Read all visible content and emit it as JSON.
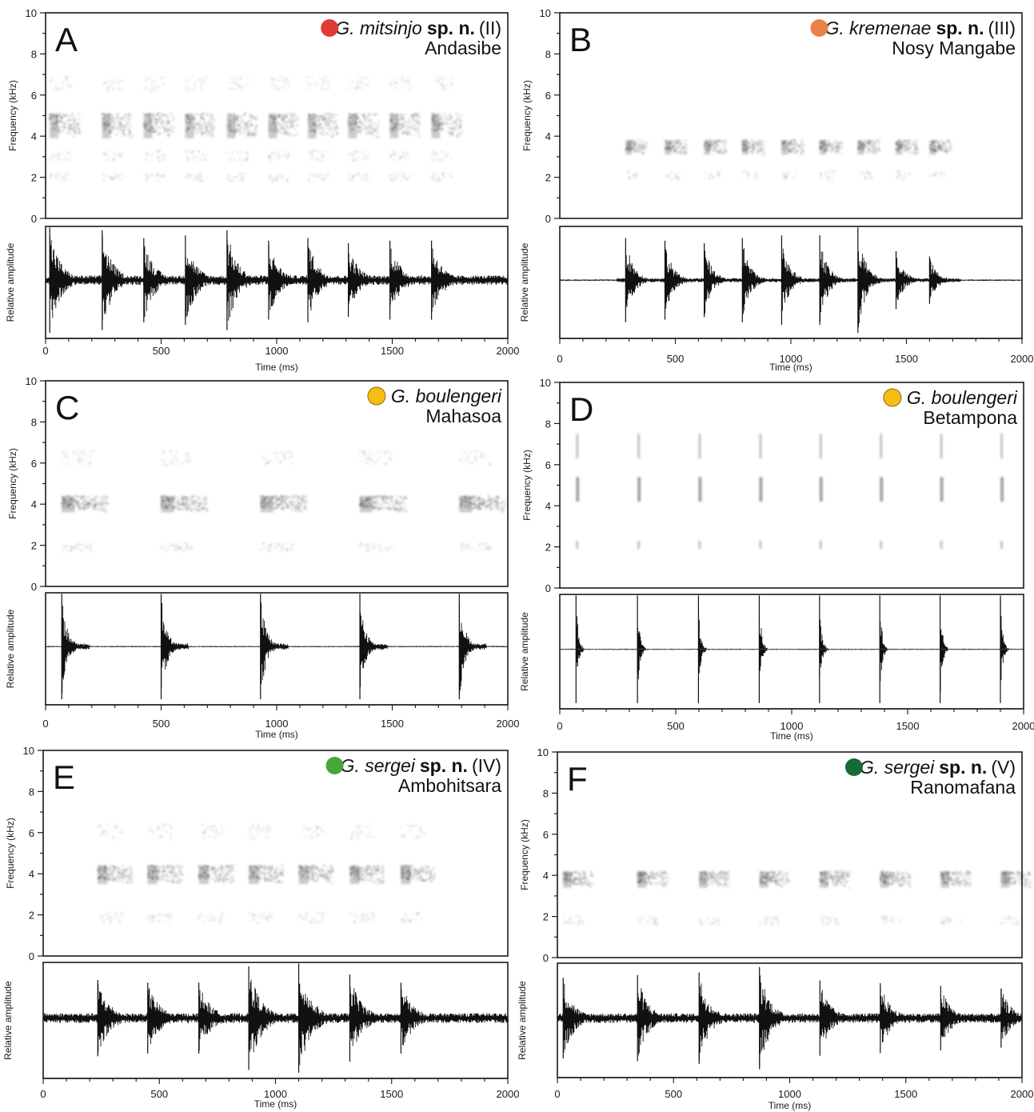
{
  "figure": {
    "panels": [
      {
        "letter": "A",
        "species": "G. mitsinjo",
        "species_suffix": "sp. n.",
        "lineage": "(II)",
        "locality": "Andasibe",
        "marker_color": "#e03a34"
      },
      {
        "letter": "B",
        "species": "G. kremenae",
        "species_suffix": "sp. n.",
        "lineage": "(III)",
        "locality": "Nosy Mangabe",
        "marker_color": "#ec8147"
      },
      {
        "letter": "C",
        "species": "G. boulengeri",
        "species_suffix": "",
        "lineage": "",
        "locality": "Mahasoa",
        "marker_color": "#f7bd12"
      },
      {
        "letter": "D",
        "species": "G. boulengeri",
        "species_suffix": "",
        "lineage": "",
        "locality": "Betampona",
        "marker_color": "#f7bd12"
      },
      {
        "letter": "E",
        "species": "G. sergei",
        "species_suffix": "sp. n.",
        "lineage": "(IV)",
        "locality": "Ambohitsara",
        "marker_color": "#45a73a"
      },
      {
        "letter": "F",
        "species": "G. sergei",
        "species_suffix": "sp. n.",
        "lineage": "(V)",
        "locality": "Ranomafana",
        "marker_color": "#176b34"
      }
    ]
  },
  "chart_data": [
    {
      "type": "spectrogram+oscillogram",
      "panel": "A",
      "spectrogram_ylabel": "Frequency (kHz)",
      "spectrogram_ylim": [
        0,
        10
      ],
      "spectrogram_yticks": [
        0,
        2,
        4,
        6,
        8,
        10
      ],
      "oscillogram_ylabel": "Relative amplitude",
      "xlabel": "Time (ms)",
      "xlim": [
        0,
        2000
      ],
      "xticks": [
        0,
        500,
        1000,
        1500,
        2000
      ],
      "note_onsets_ms": [
        18,
        245,
        425,
        605,
        785,
        965,
        1135,
        1310,
        1490,
        1670
      ],
      "note_duration_ms": 130,
      "dominant_band_khz": [
        3.9,
        5.1
      ],
      "harmonic_bands_khz": [
        [
          1.8,
          2.2
        ],
        [
          2.8,
          3.3
        ],
        [
          6.2,
          6.9
        ]
      ],
      "amplitude_peaks": [
        1.0,
        0.95,
        0.8,
        0.85,
        0.95,
        0.75,
        0.8,
        0.7,
        0.75,
        0.75
      ],
      "oscillogram_shape": "noisy"
    },
    {
      "type": "spectrogram+oscillogram",
      "panel": "B",
      "spectrogram_ylabel": "Frequency (kHz)",
      "spectrogram_ylim": [
        0,
        10
      ],
      "spectrogram_yticks": [
        0,
        2,
        4,
        6,
        8,
        10
      ],
      "oscillogram_ylabel": "Relative amplitude",
      "xlabel": "Time (ms)",
      "xlim": [
        0,
        2000
      ],
      "xticks": [
        0,
        500,
        1000,
        1500,
        2000
      ],
      "note_onsets_ms": [
        285,
        455,
        625,
        790,
        960,
        1125,
        1290,
        1455,
        1600
      ],
      "note_duration_ms": 95,
      "dominant_band_khz": [
        3.1,
        3.8
      ],
      "harmonic_bands_khz": [
        [
          1.9,
          2.3
        ]
      ],
      "amplitude_peaks": [
        0.8,
        0.75,
        0.7,
        0.8,
        0.85,
        0.85,
        1.0,
        0.55,
        0.45
      ],
      "oscillogram_shape": "noisy-quiet"
    },
    {
      "type": "spectrogram+oscillogram",
      "panel": "C",
      "spectrogram_ylabel": "Frequency (kHz)",
      "spectrogram_ylim": [
        0,
        10
      ],
      "spectrogram_yticks": [
        0,
        2,
        4,
        6,
        8,
        10
      ],
      "oscillogram_ylabel": "Relative amplitude",
      "xlabel": "Time (ms)",
      "xlim": [
        0,
        2000
      ],
      "xticks": [
        0,
        500,
        1000,
        1500,
        2000
      ],
      "note_onsets_ms": [
        70,
        500,
        930,
        1360,
        1790
      ],
      "note_duration_ms": 200,
      "dominant_band_khz": [
        3.6,
        4.4
      ],
      "harmonic_bands_khz": [
        [
          1.7,
          2.1
        ],
        [
          5.9,
          6.6
        ]
      ],
      "amplitude_peaks": [
        1.0,
        1.0,
        1.0,
        1.0,
        1.0
      ],
      "oscillogram_shape": "clean"
    },
    {
      "type": "spectrogram+oscillogram",
      "panel": "D",
      "spectrogram_ylabel": "Frequency (kHz)",
      "spectrogram_ylim": [
        0,
        10
      ],
      "spectrogram_yticks": [
        0,
        2,
        4,
        6,
        8,
        10
      ],
      "oscillogram_ylabel": "Relative amplitude",
      "xlabel": "Time (ms)",
      "xlim": [
        0,
        2000
      ],
      "xticks": [
        0,
        500,
        1000,
        1500,
        2000
      ],
      "note_onsets_ms": [
        70,
        335,
        598,
        860,
        1120,
        1380,
        1640,
        1900
      ],
      "note_duration_ms": 28,
      "dominant_band_khz": [
        4.2,
        5.4
      ],
      "harmonic_bands_khz": [
        [
          1.9,
          2.3
        ],
        [
          6.3,
          7.5
        ]
      ],
      "amplitude_peaks": [
        1.0,
        1.0,
        1.0,
        1.0,
        1.0,
        1.0,
        1.0,
        1.0
      ],
      "oscillogram_shape": "pulse"
    },
    {
      "type": "spectrogram+oscillogram",
      "panel": "E",
      "spectrogram_ylabel": "Frequency (kHz)",
      "spectrogram_ylim": [
        0,
        10
      ],
      "spectrogram_yticks": [
        0,
        2,
        4,
        6,
        8,
        10
      ],
      "oscillogram_ylabel": "Relative amplitude",
      "xlabel": "Time (ms)",
      "xlim": [
        0,
        2000
      ],
      "xticks": [
        0,
        500,
        1000,
        1500,
        2000
      ],
      "note_onsets_ms": [
        235,
        450,
        670,
        885,
        1100,
        1320,
        1540
      ],
      "note_duration_ms": 150,
      "dominant_band_khz": [
        3.5,
        4.4
      ],
      "harmonic_bands_khz": [
        [
          1.6,
          2.1
        ],
        [
          5.7,
          6.4
        ]
      ],
      "amplitude_peaks": [
        0.7,
        0.65,
        0.65,
        0.95,
        1.0,
        0.8,
        0.65
      ],
      "oscillogram_shape": "noisy"
    },
    {
      "type": "spectrogram+oscillogram",
      "panel": "F",
      "spectrogram_ylabel": "Frequency (kHz)",
      "spectrogram_ylim": [
        0,
        10
      ],
      "spectrogram_yticks": [
        0,
        2,
        4,
        6,
        8,
        10
      ],
      "oscillogram_ylabel": "Relative amplitude",
      "xlabel": "Time (ms)",
      "xlim": [
        0,
        2000
      ],
      "xticks": [
        0,
        500,
        1000,
        1500,
        2000
      ],
      "note_onsets_ms": [
        25,
        345,
        610,
        870,
        1130,
        1390,
        1650,
        1910
      ],
      "note_duration_ms": 130,
      "dominant_band_khz": [
        3.4,
        4.2
      ],
      "harmonic_bands_khz": [
        [
          1.6,
          2.0
        ]
      ],
      "amplitude_peaks": [
        0.75,
        0.8,
        0.85,
        0.95,
        0.7,
        0.65,
        0.6,
        0.55
      ],
      "oscillogram_shape": "noisy"
    }
  ]
}
